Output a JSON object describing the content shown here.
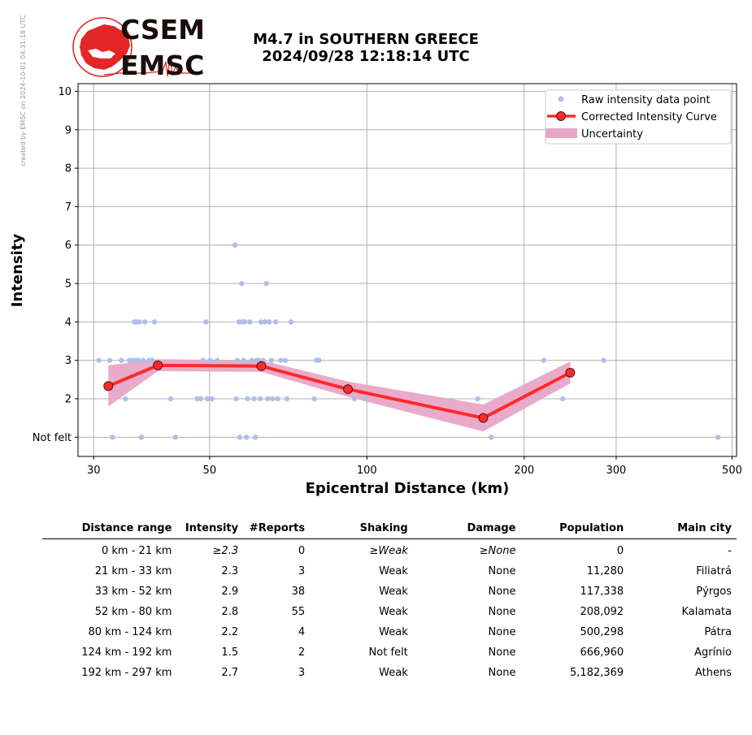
{
  "side_note": "created by EMSC on 2024-10-01 04:31:18 UTC",
  "logo": {
    "text_top": "CSEM",
    "text_bottom": "EMSC",
    "color_red": "#e32626",
    "color_dark": "#1a0d0d"
  },
  "title": {
    "line1": "M4.7 in SOUTHERN GREECE",
    "line2": "2024/09/28 12:18:14 UTC"
  },
  "chart_data": {
    "type": "scatter",
    "xlabel": "Epicentral Distance (km)",
    "ylabel": "Intensity",
    "x_scale": "log",
    "xlim": [
      28,
      510
    ],
    "ylim": [
      0.5,
      10.2
    ],
    "x_ticks": [
      30,
      50,
      100,
      200,
      300,
      500
    ],
    "y_ticks": [
      1,
      2,
      3,
      4,
      5,
      6,
      7,
      8,
      9,
      10
    ],
    "y_tick_labels": [
      "Not felt",
      "2",
      "3",
      "4",
      "5",
      "6",
      "7",
      "8",
      "9",
      "10"
    ],
    "grid": true,
    "legend_position": "top-right",
    "colors": {
      "raw": "#aebfe8",
      "curve": "#ff2a2a",
      "marker_edge": "#551111",
      "band": "#e8a7c6"
    },
    "legend": [
      "Raw intensity data point",
      "Corrected Intensity Curve",
      "Uncertainty"
    ],
    "raw_points": [
      [
        30.7,
        3
      ],
      [
        32.2,
        3
      ],
      [
        32.6,
        1
      ],
      [
        33.9,
        3
      ],
      [
        34.5,
        2
      ],
      [
        35.1,
        3
      ],
      [
        35.6,
        3
      ],
      [
        35.9,
        4
      ],
      [
        36.1,
        3
      ],
      [
        36.2,
        4
      ],
      [
        36.5,
        3
      ],
      [
        36.7,
        4
      ],
      [
        37.0,
        1
      ],
      [
        37.3,
        3
      ],
      [
        37.6,
        4
      ],
      [
        38.3,
        3
      ],
      [
        38.8,
        3
      ],
      [
        39.2,
        4
      ],
      [
        42.1,
        2
      ],
      [
        43.0,
        1
      ],
      [
        47.3,
        2
      ],
      [
        48.1,
        2
      ],
      [
        48.6,
        3
      ],
      [
        49.2,
        4
      ],
      [
        49.5,
        2
      ],
      [
        50.1,
        3
      ],
      [
        50.5,
        2
      ],
      [
        51.7,
        3
      ],
      [
        56.2,
        2
      ],
      [
        56.5,
        3
      ],
      [
        56.9,
        4
      ],
      [
        57.1,
        1
      ],
      [
        57.6,
        5
      ],
      [
        57.8,
        4
      ],
      [
        58.1,
        3
      ],
      [
        58.4,
        4
      ],
      [
        59.1,
        2
      ],
      [
        59.7,
        4
      ],
      [
        60.2,
        3
      ],
      [
        60.8,
        2
      ],
      [
        61.2,
        1
      ],
      [
        61.5,
        3
      ],
      [
        62.1,
        3
      ],
      [
        62.5,
        2
      ],
      [
        62.7,
        4
      ],
      [
        63.3,
        3
      ],
      [
        63.8,
        4
      ],
      [
        64.2,
        5
      ],
      [
        64.6,
        2
      ],
      [
        65.0,
        4
      ],
      [
        65.7,
        3
      ],
      [
        66.0,
        2
      ],
      [
        66.9,
        4
      ],
      [
        67.5,
        2
      ],
      [
        68.4,
        3
      ],
      [
        69.8,
        3
      ],
      [
        70.3,
        2
      ],
      [
        71.6,
        4
      ],
      [
        55.9,
        6
      ],
      [
        58.8,
        1
      ],
      [
        79.3,
        2
      ],
      [
        80.1,
        3
      ],
      [
        81.0,
        3
      ],
      [
        94.6,
        2
      ],
      [
        99.0,
        2
      ],
      [
        163.0,
        2
      ],
      [
        173.0,
        1
      ],
      [
        218.0,
        3
      ],
      [
        237.0,
        2
      ],
      [
        284.0,
        3
      ],
      [
        470.0,
        1
      ]
    ],
    "curve": [
      {
        "x": 32.0,
        "y": 2.33,
        "lo": 1.8,
        "hi": 2.87
      },
      {
        "x": 39.8,
        "y": 2.87,
        "lo": 2.72,
        "hi": 3.03
      },
      {
        "x": 62.8,
        "y": 2.85,
        "lo": 2.7,
        "hi": 3.0
      },
      {
        "x": 92.0,
        "y": 2.25,
        "lo": 2.05,
        "hi": 2.45
      },
      {
        "x": 167.0,
        "y": 1.5,
        "lo": 1.15,
        "hi": 1.85
      },
      {
        "x": 245.0,
        "y": 2.68,
        "lo": 2.4,
        "hi": 2.97
      }
    ]
  },
  "table": {
    "headers": [
      "Distance range",
      "Intensity",
      "#Reports",
      "Shaking",
      "Damage",
      "Population",
      "Main city"
    ],
    "rows": [
      {
        "dist": "0 km -   21 km",
        "intensity": "≥2.3",
        "reports": "0",
        "shaking": "≥Weak",
        "damage": "≥None",
        "population": "0",
        "city": "-"
      },
      {
        "dist": "21 km -   33 km",
        "intensity": "2.3",
        "reports": "3",
        "shaking": "Weak",
        "damage": "None",
        "population": "11,280",
        "city": "Filiatrá"
      },
      {
        "dist": "33 km -   52 km",
        "intensity": "2.9",
        "reports": "38",
        "shaking": "Weak",
        "damage": "None",
        "population": "117,338",
        "city": "Pýrgos"
      },
      {
        "dist": "52 km -   80 km",
        "intensity": "2.8",
        "reports": "55",
        "shaking": "Weak",
        "damage": "None",
        "population": "208,092",
        "city": "Kalamata"
      },
      {
        "dist": "80 km -  124 km",
        "intensity": "2.2",
        "reports": "4",
        "shaking": "Weak",
        "damage": "None",
        "population": "500,298",
        "city": "Pátra"
      },
      {
        "dist": "124 km -  192 km",
        "intensity": "1.5",
        "reports": "2",
        "shaking": "Not felt",
        "damage": "None",
        "population": "666,960",
        "city": "Agrínio"
      },
      {
        "dist": "192 km -  297 km",
        "intensity": "2.7",
        "reports": "3",
        "shaking": "Weak",
        "damage": "None",
        "population": "5,182,369",
        "city": "Athens"
      }
    ]
  }
}
